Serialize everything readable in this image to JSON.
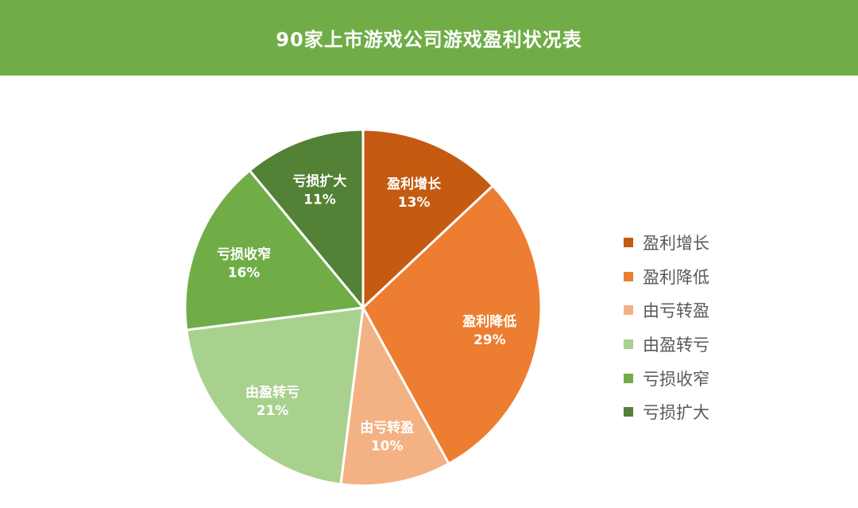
{
  "chart_data": {
    "type": "pie",
    "title": "90家上市游戏公司游戏盈利状况表",
    "categories": [
      "盈利增长",
      "盈利降低",
      "由亏转盈",
      "由盈转亏",
      "亏损收窄",
      "亏损扩大"
    ],
    "values": [
      13,
      29,
      10,
      21,
      16,
      11
    ],
    "value_labels": [
      "13%",
      "29%",
      "10%",
      "21%",
      "16%",
      "11%"
    ],
    "colors": [
      "#C55A11",
      "#ED7D31",
      "#F4B183",
      "#A9D18E",
      "#70AD47",
      "#538135"
    ],
    "legend_position": "right"
  }
}
